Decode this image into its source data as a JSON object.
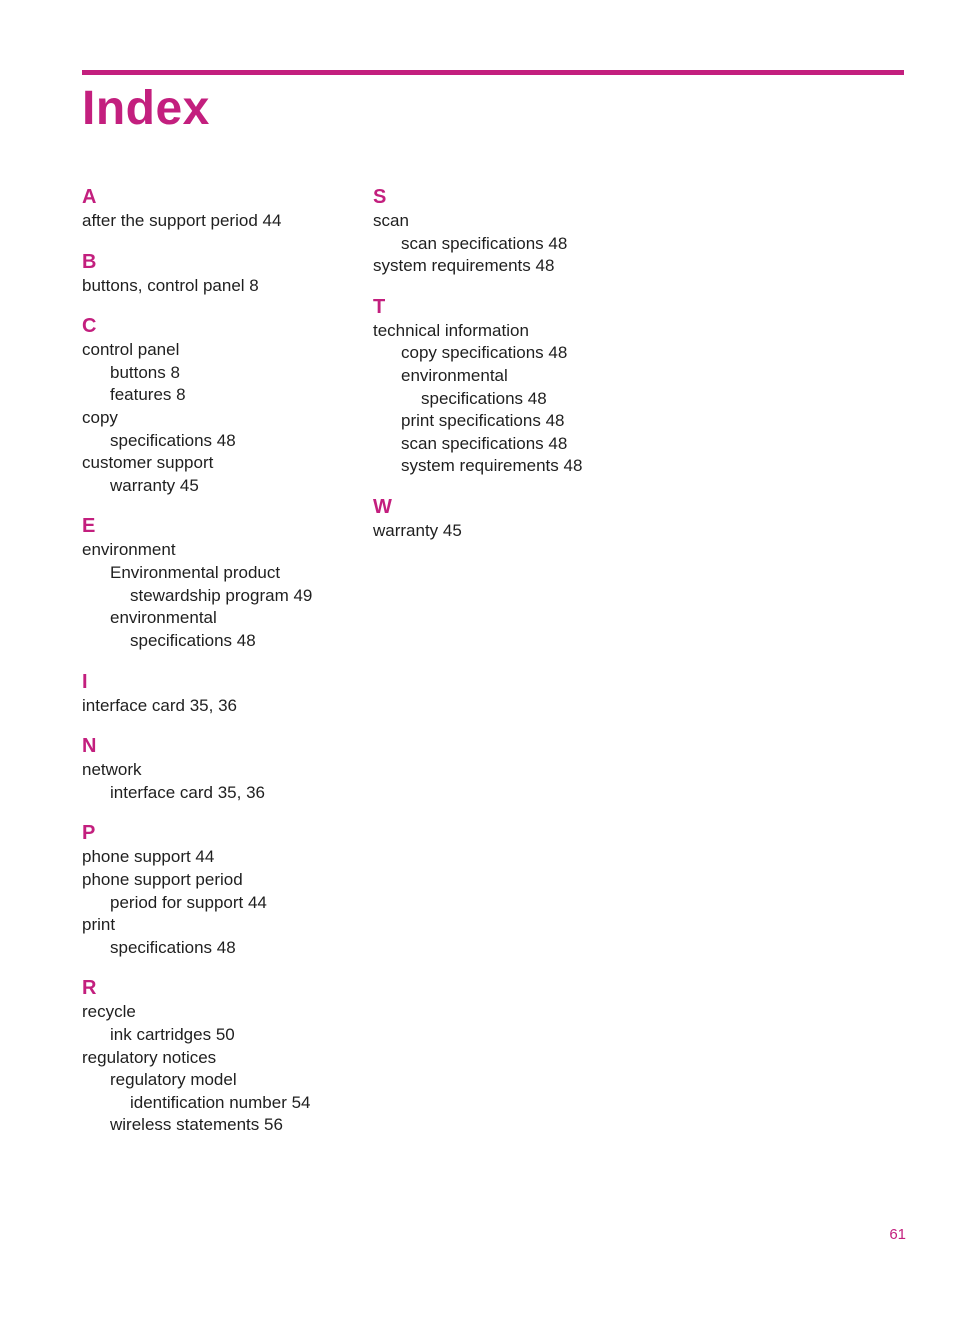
{
  "colors": {
    "accent": "#c31f7e",
    "body": "#1f1f1f",
    "background": "#ffffff"
  },
  "title": "Index",
  "page_number": "61",
  "columns": [
    {
      "sections": [
        {
          "letter": "A",
          "entries": [
            {
              "level": 0,
              "text": "after the support period 44"
            }
          ]
        },
        {
          "letter": "B",
          "entries": [
            {
              "level": 0,
              "text": "buttons, control panel 8"
            }
          ]
        },
        {
          "letter": "C",
          "entries": [
            {
              "level": 0,
              "text": "control panel"
            },
            {
              "level": 1,
              "text": "buttons 8"
            },
            {
              "level": 1,
              "text": "features 8"
            },
            {
              "level": 0,
              "text": "copy"
            },
            {
              "level": 1,
              "text": "specifications 48"
            },
            {
              "level": 0,
              "text": "customer support"
            },
            {
              "level": 1,
              "text": "warranty 45"
            }
          ]
        },
        {
          "letter": "E",
          "entries": [
            {
              "level": 0,
              "text": "environment"
            },
            {
              "level": 1,
              "text": "Environmental product"
            },
            {
              "level": 2,
              "text": "stewardship program 49"
            },
            {
              "level": 1,
              "text": "environmental"
            },
            {
              "level": 2,
              "text": "specifications 48"
            }
          ]
        },
        {
          "letter": "I",
          "entries": [
            {
              "level": 0,
              "text": "interface card 35, 36"
            }
          ]
        },
        {
          "letter": "N",
          "entries": [
            {
              "level": 0,
              "text": "network"
            },
            {
              "level": 1,
              "text": "interface card 35, 36"
            }
          ]
        },
        {
          "letter": "P",
          "entries": [
            {
              "level": 0,
              "text": "phone support 44"
            },
            {
              "level": 0,
              "text": "phone support period"
            },
            {
              "level": 1,
              "text": "period for support 44"
            },
            {
              "level": 0,
              "text": "print"
            },
            {
              "level": 1,
              "text": "specifications 48"
            }
          ]
        },
        {
          "letter": "R",
          "entries": [
            {
              "level": 0,
              "text": "recycle"
            },
            {
              "level": 1,
              "text": "ink cartridges 50"
            },
            {
              "level": 0,
              "text": "regulatory notices"
            },
            {
              "level": 1,
              "text": "regulatory model"
            },
            {
              "level": 2,
              "text": "identification number 54"
            },
            {
              "level": 1,
              "text": "wireless statements 56"
            }
          ]
        }
      ]
    },
    {
      "sections": [
        {
          "letter": "S",
          "entries": [
            {
              "level": 0,
              "text": "scan"
            },
            {
              "level": 1,
              "text": "scan specifications 48"
            },
            {
              "level": 0,
              "text": "system requirements 48"
            }
          ]
        },
        {
          "letter": "T",
          "entries": [
            {
              "level": 0,
              "text": "technical information"
            },
            {
              "level": 1,
              "text": "copy specifications 48"
            },
            {
              "level": 1,
              "text": "environmental"
            },
            {
              "level": 2,
              "text": "specifications 48"
            },
            {
              "level": 1,
              "text": "print specifications 48"
            },
            {
              "level": 1,
              "text": "scan specifications 48"
            },
            {
              "level": 1,
              "text": "system requirements 48"
            }
          ]
        },
        {
          "letter": "W",
          "entries": [
            {
              "level": 0,
              "text": "warranty 45"
            }
          ]
        }
      ]
    }
  ]
}
